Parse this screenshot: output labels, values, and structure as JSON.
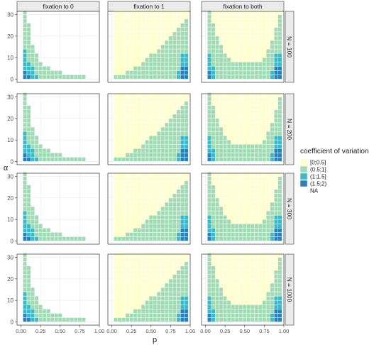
{
  "chart_data": {
    "type": "heatmap",
    "facet_columns": [
      "fixation to 0",
      "fixation to 1",
      "fixation to both"
    ],
    "facet_rows": [
      "N = 100",
      "N = 200",
      "N = 300",
      "N = 1000"
    ],
    "xlabel": "p",
    "ylabel": "α",
    "xlim": [
      0,
      1
    ],
    "ylim": [
      0,
      31
    ],
    "x_ticks": [
      "0.00",
      "0.25",
      "0.50",
      "0.75",
      "1.00"
    ],
    "y_ticks": [
      "0",
      "10",
      "20",
      "30"
    ],
    "x_tick_values": [
      0,
      0.25,
      0.5,
      0.75,
      1
    ],
    "y_tick_values": [
      0,
      10,
      20,
      30
    ],
    "legend": {
      "title": "coefficient of variation",
      "position": "right",
      "items": [
        {
          "label": "[0;0.5]",
          "color": "#ffffcc"
        },
        {
          "label": "(0.5;1]",
          "color": "#a1dab4"
        },
        {
          "label": "(1;1.5]",
          "color": "#41b6c4"
        },
        {
          "label": "(1.5;2)",
          "color": "#2c7fb8"
        },
        {
          "label": "NA",
          "color": "#253494"
        }
      ]
    },
    "colors": {
      "panel_border": "#333333",
      "strip_fill": "#ebebeb",
      "grid": "#ebebeb",
      "tick_text": "#4d4d4d"
    },
    "grid": true
  }
}
